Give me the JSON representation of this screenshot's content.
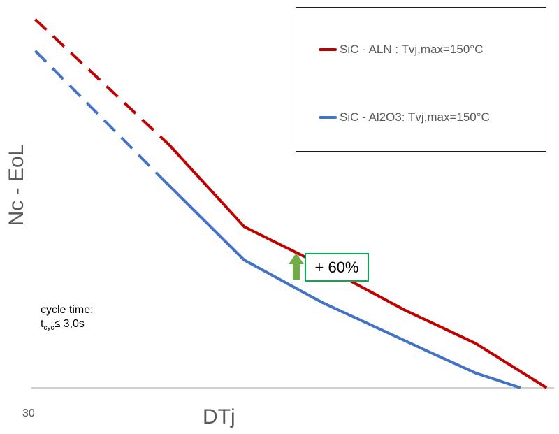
{
  "chart_data": {
    "type": "line",
    "title": "",
    "xlabel": "DTj",
    "ylabel": "Nc - EoL",
    "x_ticks": [
      "30"
    ],
    "xlim": [
      30,
      100
    ],
    "ylim": [
      0,
      100
    ],
    "grid": false,
    "legend_position": "top-right",
    "series": [
      {
        "name": "SiC - ALN : Tvj,max=150°C",
        "color": "#c00000",
        "x": [
          30.5,
          48.5,
          58.5,
          67.5,
          80.0,
          89.5,
          99.0
        ],
        "y": [
          99.5,
          65.5,
          43.5,
          34.5,
          21.0,
          12.0,
          0.0
        ],
        "extrapolated_until_x": 48.5
      },
      {
        "name": "SiC - Al2O3: Tvj,max=150°C",
        "color": "#4472c4",
        "x": [
          30.5,
          47.5,
          58.5,
          69.0,
          83.5,
          89.5,
          95.5
        ],
        "y": [
          91.0,
          56.5,
          34.5,
          23.0,
          9.5,
          4.0,
          0.0
        ],
        "extrapolated_until_x": 47.5
      }
    ],
    "annotations": [
      {
        "text": "+ 60%",
        "arrow_color": "#70ad47",
        "box_color": "#00b050"
      }
    ]
  },
  "note": {
    "title": "cycle time:",
    "t": "t",
    "sub": "cyc",
    "rest": "≤ 3,0s"
  }
}
